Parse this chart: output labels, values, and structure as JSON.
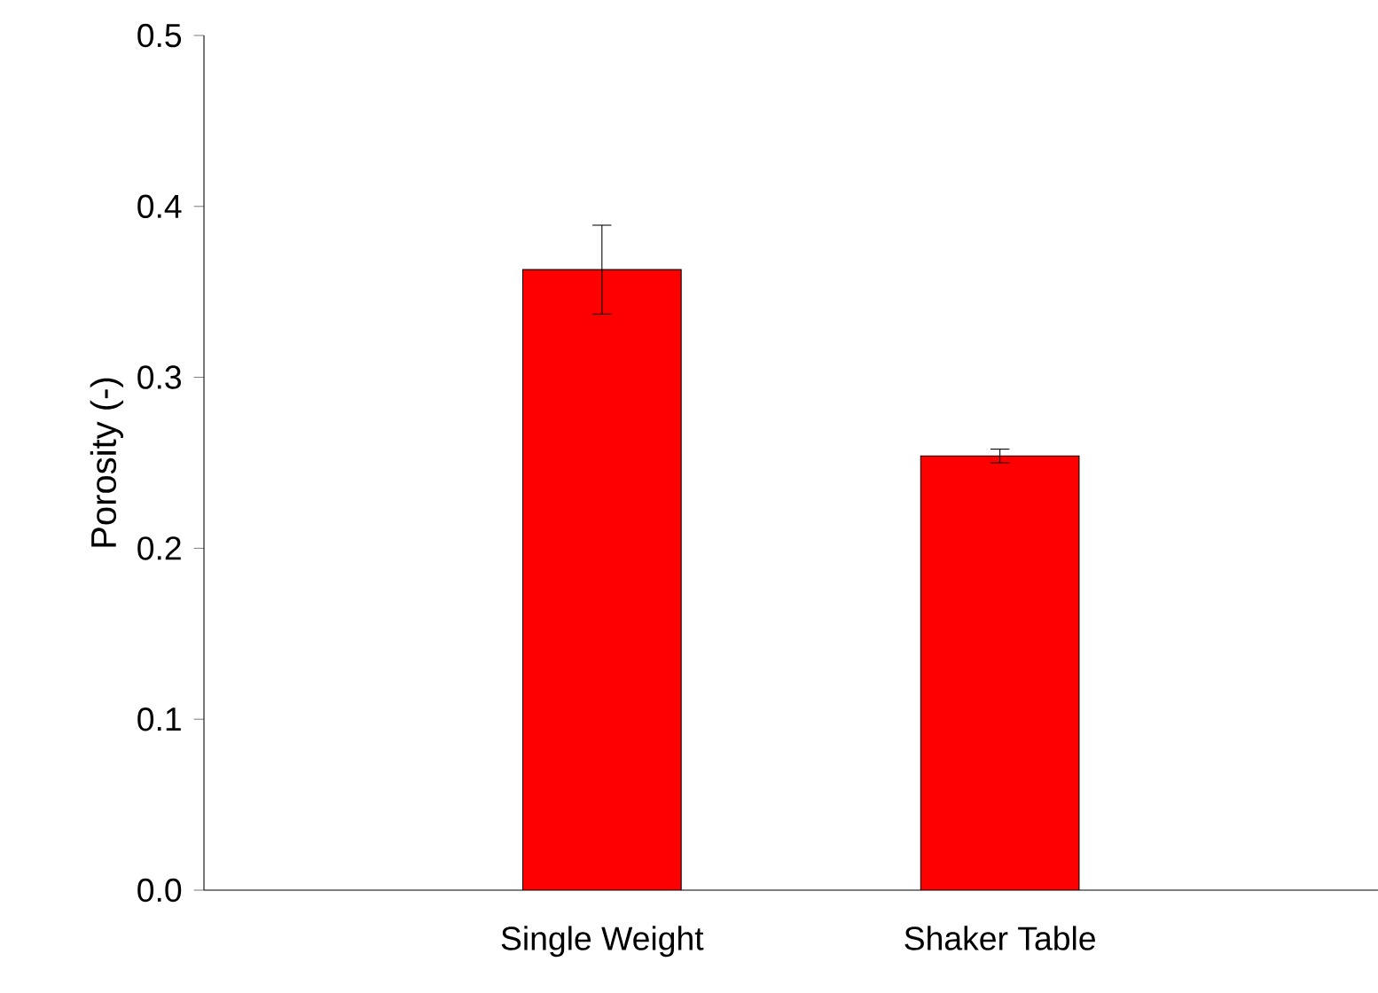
{
  "chart_data": {
    "type": "bar",
    "ylabel": "Porosity (-)",
    "categories": [
      "Single Weight",
      "Shaker Table"
    ],
    "values": [
      0.363,
      0.254
    ],
    "errors": [
      0.026,
      0.004
    ],
    "color": "#ff0000",
    "ylim": [
      0,
      0.5
    ],
    "yticks": [
      {
        "value": 0,
        "label": "0.0"
      },
      0.1,
      0.2,
      0.3,
      0.4,
      0.5
    ]
  }
}
